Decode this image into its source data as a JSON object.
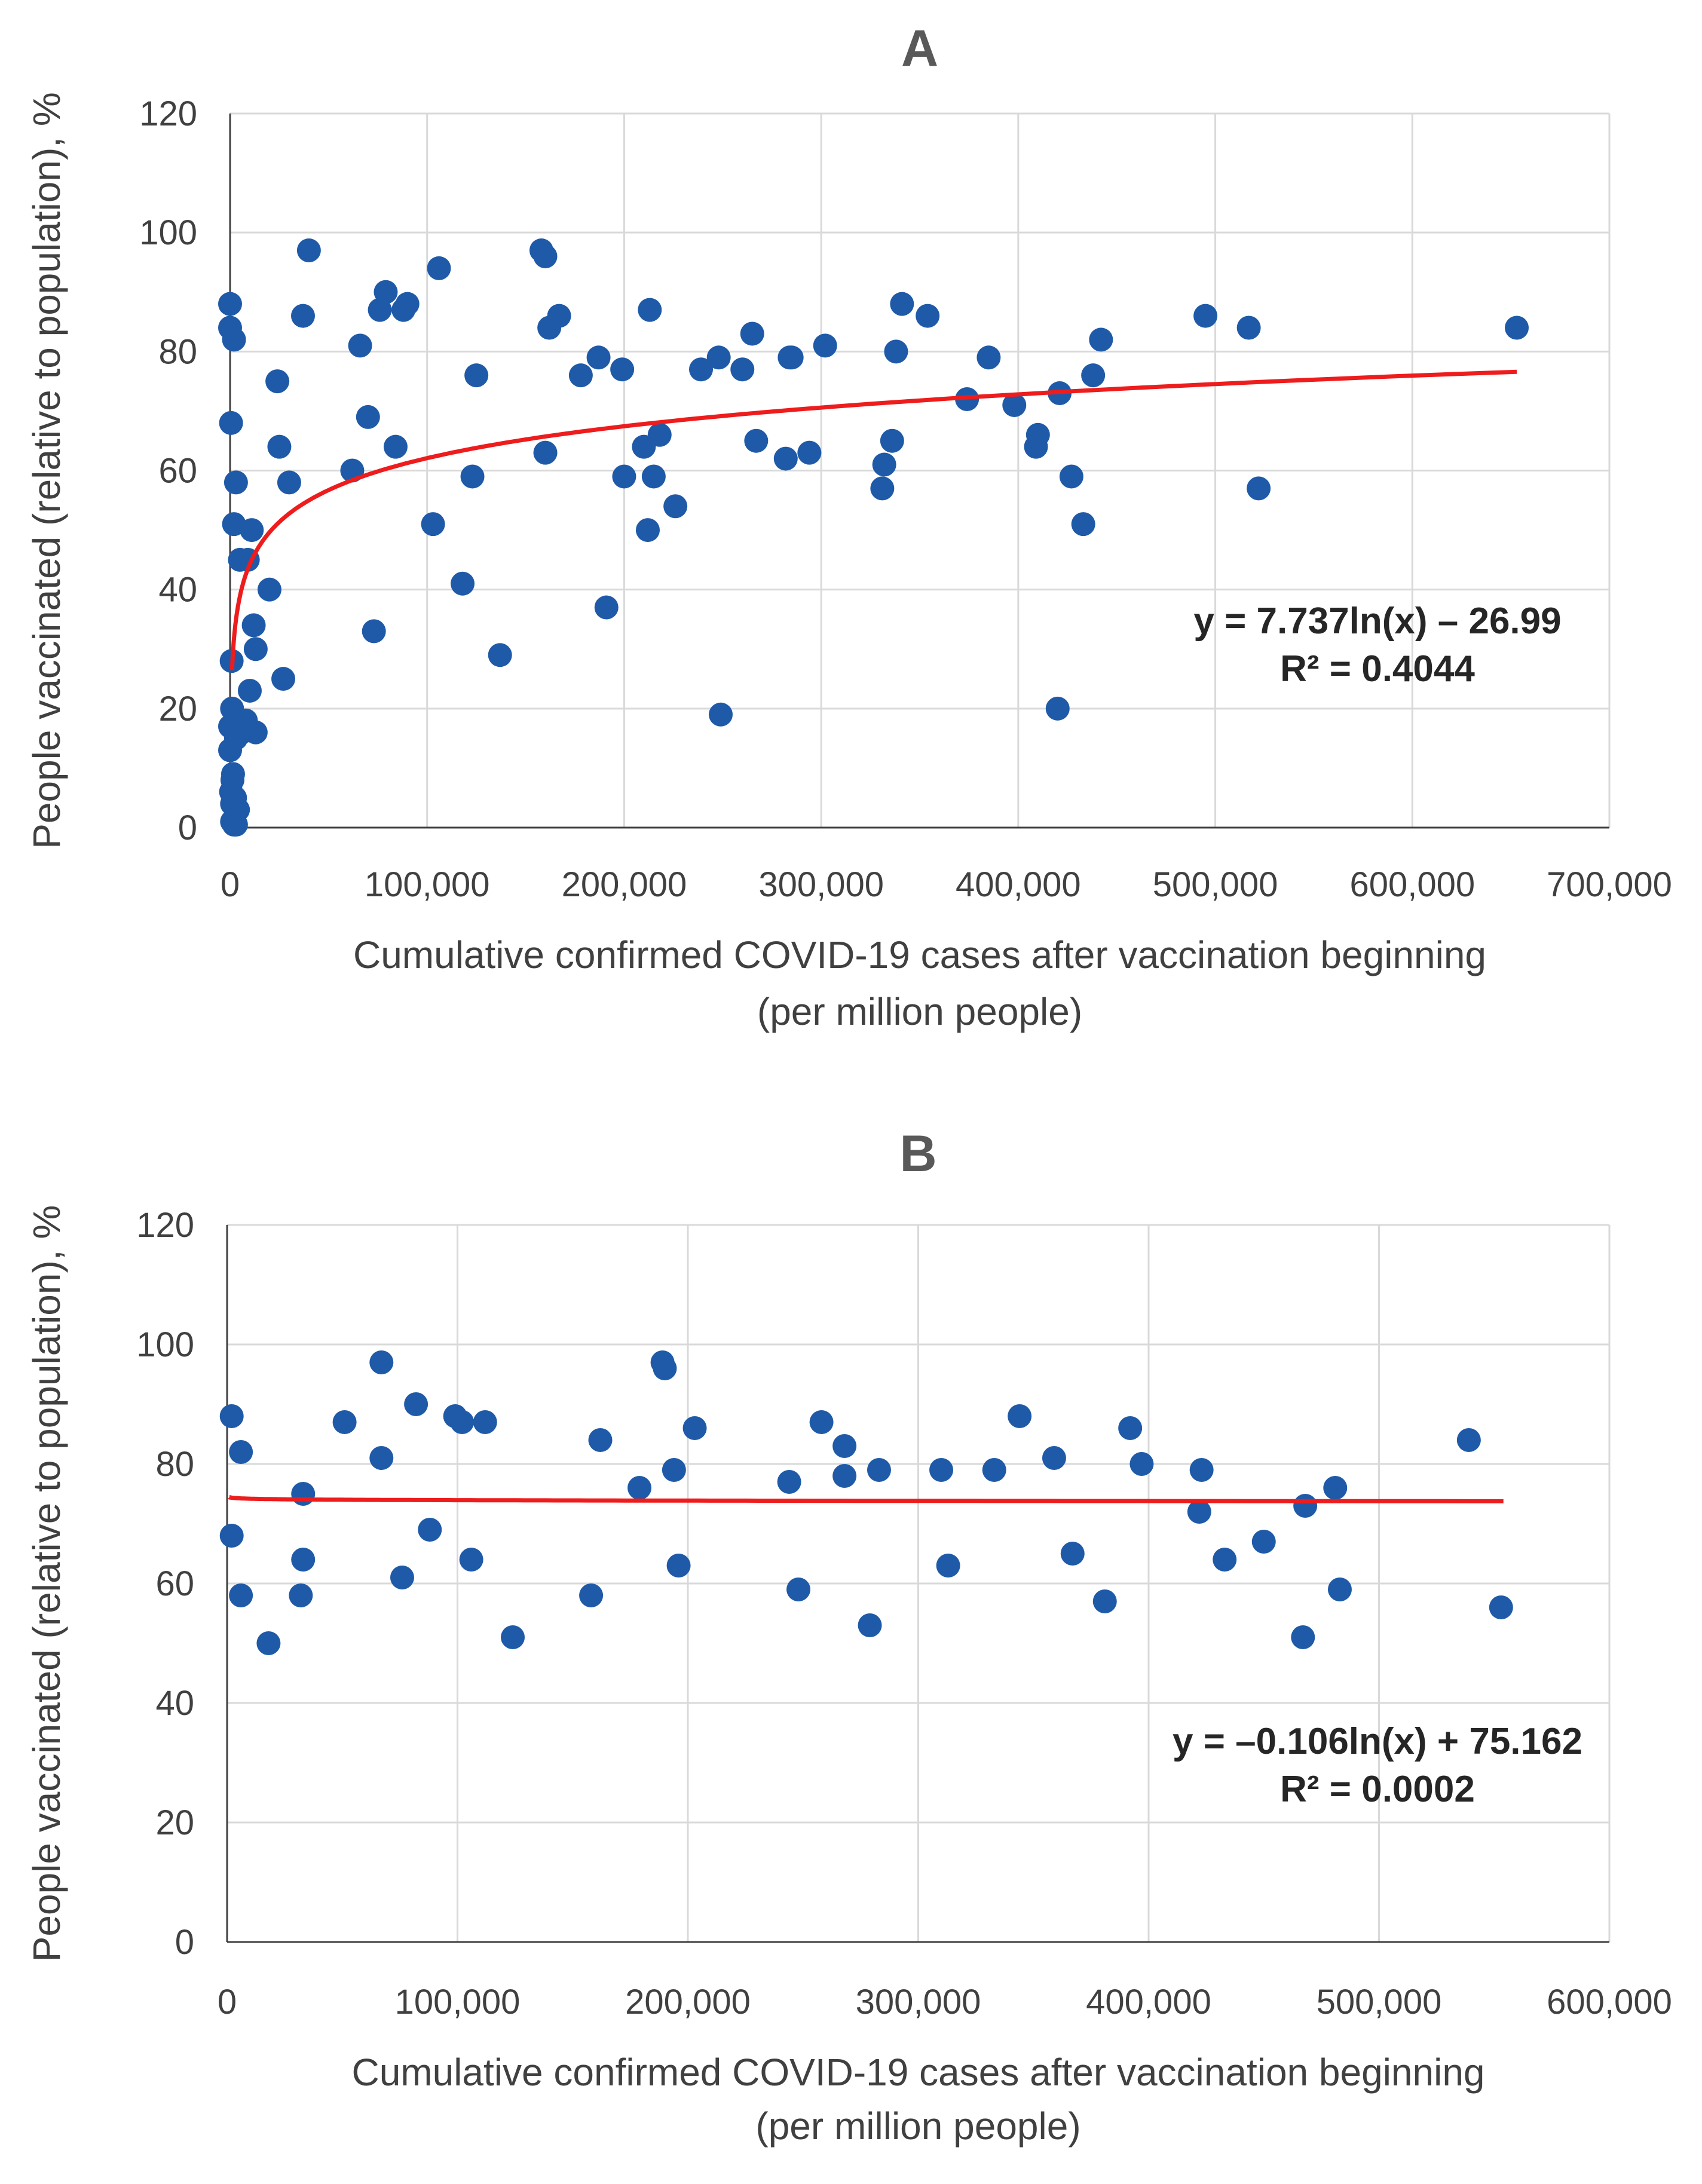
{
  "chart_data": [
    {
      "type": "scatter",
      "panel_label": "A",
      "xlabel_line1": "Cumulative confirmed COVID-19 cases after vaccination beginning",
      "xlabel_line2": "(per million people)",
      "ylabel": "People vaccinated (relative to population), %",
      "xlim": [
        0,
        700000
      ],
      "ylim": [
        0,
        120
      ],
      "xticks": [
        0,
        100000,
        200000,
        300000,
        400000,
        500000,
        600000,
        700000
      ],
      "xtick_labels": [
        "0",
        "100,000",
        "200,000",
        "300,000",
        "400,000",
        "500,000",
        "600,000",
        "700,000"
      ],
      "yticks": [
        0,
        20,
        40,
        60,
        80,
        100,
        120
      ],
      "ytick_labels": [
        "0",
        "20",
        "40",
        "60",
        "80",
        "100",
        "120"
      ],
      "grid": true,
      "point_color": "#1f5aa8",
      "trend_color": "#ee1c1c",
      "trend": {
        "type": "log",
        "a": 7.737,
        "b": -26.99,
        "x_from": 1000,
        "x_to": 653000
      },
      "equation": "y = 7.737ln(x) – 26.99",
      "r2": "R² = 0.4044",
      "points": [
        [
          0,
          88
        ],
        [
          0,
          84
        ],
        [
          2000,
          82
        ],
        [
          500,
          68
        ],
        [
          3000,
          58
        ],
        [
          2000,
          51
        ],
        [
          5000,
          45
        ],
        [
          9000,
          45
        ],
        [
          11000,
          50
        ],
        [
          12000,
          34
        ],
        [
          13000,
          30
        ],
        [
          20000,
          40
        ],
        [
          24000,
          75
        ],
        [
          25000,
          64
        ],
        [
          27000,
          25
        ],
        [
          30000,
          58
        ],
        [
          10000,
          23
        ],
        [
          13000,
          16
        ],
        [
          5000,
          18
        ],
        [
          3000,
          15
        ],
        [
          1000,
          20
        ],
        [
          0,
          17
        ],
        [
          0,
          13
        ],
        [
          1500,
          9
        ],
        [
          500,
          6
        ],
        [
          1000,
          4
        ],
        [
          2500,
          5
        ],
        [
          4000,
          3
        ],
        [
          1000,
          1
        ],
        [
          2000,
          0.5
        ],
        [
          3000,
          0.5
        ],
        [
          8000,
          18
        ],
        [
          800,
          28
        ],
        [
          1200,
          8
        ],
        [
          6000,
          16
        ],
        [
          37000,
          86
        ],
        [
          40000,
          97
        ],
        [
          62000,
          60
        ],
        [
          66000,
          81
        ],
        [
          70000,
          69
        ],
        [
          73000,
          33
        ],
        [
          76000,
          87
        ],
        [
          79000,
          90
        ],
        [
          84000,
          64
        ],
        [
          88000,
          87
        ],
        [
          90000,
          88
        ],
        [
          103000,
          51
        ],
        [
          106000,
          94
        ],
        [
          118000,
          41
        ],
        [
          123000,
          59
        ],
        [
          125000,
          76
        ],
        [
          137000,
          29
        ],
        [
          158000,
          97
        ],
        [
          160000,
          96
        ],
        [
          160000,
          63
        ],
        [
          162000,
          84
        ],
        [
          167000,
          86
        ],
        [
          178000,
          76
        ],
        [
          187000,
          79
        ],
        [
          191000,
          37
        ],
        [
          199000,
          77
        ],
        [
          200000,
          59
        ],
        [
          210000,
          64
        ],
        [
          212000,
          50
        ],
        [
          213000,
          87
        ],
        [
          215000,
          59
        ],
        [
          218000,
          66
        ],
        [
          226000,
          54
        ],
        [
          239000,
          77
        ],
        [
          248000,
          79
        ],
        [
          249000,
          19
        ],
        [
          260000,
          77
        ],
        [
          265000,
          83
        ],
        [
          267000,
          65
        ],
        [
          282000,
          62
        ],
        [
          284000,
          79
        ],
        [
          285000,
          79
        ],
        [
          294000,
          63
        ],
        [
          302000,
          81
        ],
        [
          331000,
          57
        ],
        [
          332000,
          61
        ],
        [
          336000,
          65
        ],
        [
          338000,
          80
        ],
        [
          341000,
          88
        ],
        [
          354000,
          86
        ],
        [
          374000,
          72
        ],
        [
          385000,
          79
        ],
        [
          398000,
          71
        ],
        [
          409000,
          64
        ],
        [
          410000,
          66
        ],
        [
          420000,
          20
        ],
        [
          421000,
          73
        ],
        [
          427000,
          59
        ],
        [
          433000,
          51
        ],
        [
          438000,
          76
        ],
        [
          442000,
          82
        ],
        [
          495000,
          86
        ],
        [
          517000,
          84
        ],
        [
          522000,
          57
        ],
        [
          653000,
          84
        ]
      ]
    },
    {
      "type": "scatter",
      "panel_label": "B",
      "xlabel_line1": "Cumulative confirmed COVID-19 cases after vaccination beginning",
      "xlabel_line2": "(per million people)",
      "ylabel": "People vaccinated (relative to population), %",
      "xlim": [
        0,
        600000
      ],
      "ylim": [
        0,
        120
      ],
      "xticks": [
        0,
        100000,
        200000,
        300000,
        400000,
        500000,
        600000
      ],
      "xtick_labels": [
        "0",
        "100,000",
        "200,000",
        "300,000",
        "400,000",
        "500,000",
        "600,000"
      ],
      "yticks": [
        0,
        20,
        40,
        60,
        80,
        100,
        120
      ],
      "ytick_labels": [
        "0",
        "20",
        "40",
        "60",
        "80",
        "100",
        "120"
      ],
      "grid": true,
      "point_color": "#1f5aa8",
      "trend_color": "#ee1c1c",
      "trend": {
        "type": "log",
        "a": -0.106,
        "b": 75.162,
        "x_from": 1000,
        "x_to": 554000
      },
      "equation": "y =  –0.106ln(x) + 75.162",
      "r2": "R² = 0.0002",
      "points": [
        [
          2000,
          88
        ],
        [
          2000,
          68
        ],
        [
          6000,
          82
        ],
        [
          6000,
          58
        ],
        [
          18000,
          50
        ],
        [
          33000,
          75
        ],
        [
          33000,
          64
        ],
        [
          32000,
          58
        ],
        [
          51000,
          87
        ],
        [
          67000,
          97
        ],
        [
          67000,
          81
        ],
        [
          76000,
          61
        ],
        [
          82000,
          90
        ],
        [
          88000,
          69
        ],
        [
          99000,
          88
        ],
        [
          102000,
          87
        ],
        [
          106000,
          64
        ],
        [
          112000,
          87
        ],
        [
          124000,
          51
        ],
        [
          158000,
          58
        ],
        [
          162000,
          84
        ],
        [
          179000,
          76
        ],
        [
          189000,
          97
        ],
        [
          190000,
          96
        ],
        [
          194000,
          79
        ],
        [
          196000,
          63
        ],
        [
          203000,
          86
        ],
        [
          244000,
          77
        ],
        [
          248000,
          59
        ],
        [
          258000,
          87
        ],
        [
          268000,
          83
        ],
        [
          268000,
          78
        ],
        [
          279000,
          53
        ],
        [
          283000,
          79
        ],
        [
          310000,
          79
        ],
        [
          313000,
          63
        ],
        [
          333000,
          79
        ],
        [
          344000,
          88
        ],
        [
          359000,
          81
        ],
        [
          367000,
          65
        ],
        [
          381000,
          57
        ],
        [
          392000,
          86
        ],
        [
          397000,
          80
        ],
        [
          422000,
          72
        ],
        [
          423000,
          79
        ],
        [
          433000,
          64
        ],
        [
          450000,
          67
        ],
        [
          467000,
          51
        ],
        [
          468000,
          73
        ],
        [
          481000,
          76
        ],
        [
          483000,
          59
        ],
        [
          539000,
          84
        ],
        [
          553000,
          56
        ]
      ]
    }
  ]
}
